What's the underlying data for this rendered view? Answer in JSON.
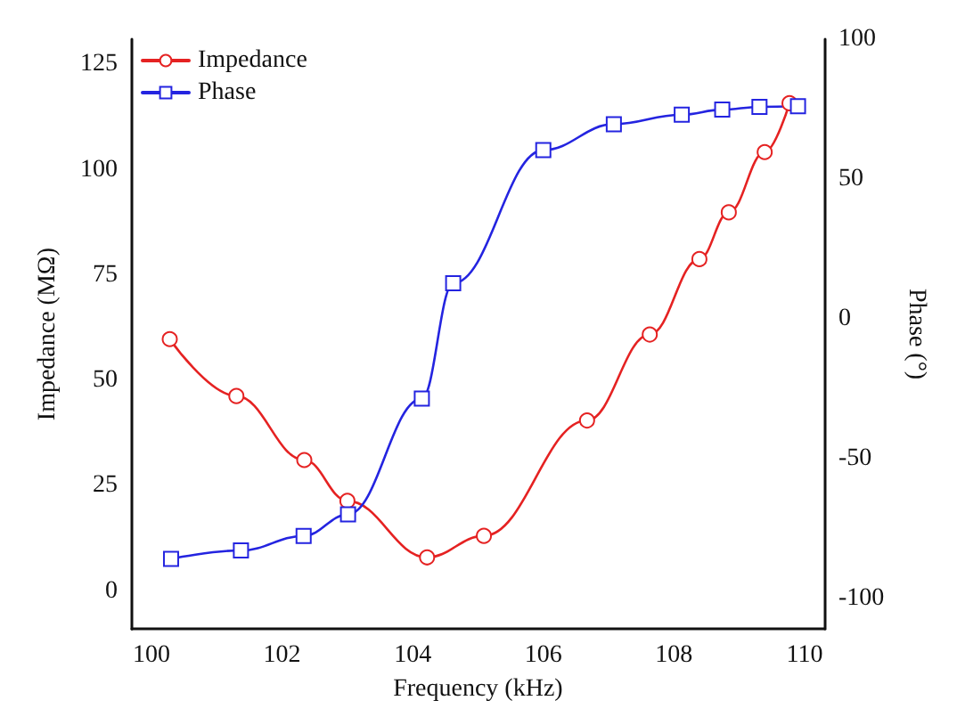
{
  "chart_data": {
    "type": "line",
    "xlabel": "Frequency (kHz)",
    "ylabel": "Impedance (MΩ)",
    "y2label": "Phase (°)",
    "xlim": [
      99.7,
      110.3
    ],
    "xticks": [
      100,
      102,
      104,
      106,
      108,
      110
    ],
    "ylim": [
      -9,
      131
    ],
    "yticks": [
      0,
      25,
      50,
      75,
      100,
      125
    ],
    "y2lim": [
      -111,
      100
    ],
    "y2ticks": [
      -100,
      -50,
      0,
      50,
      100
    ],
    "grid": false,
    "legend": "top left",
    "line_style": "solid",
    "series": [
      {
        "name": "Impedance",
        "color": "#e52222",
        "marker": "circle",
        "x": [
          100.28,
          101.3,
          102.34,
          103.0,
          104.22,
          105.09,
          106.67,
          107.63,
          108.39,
          108.84,
          109.39,
          109.77
        ],
        "values": [
          59.8,
          46.3,
          31.1,
          21.4,
          8.0,
          13.1,
          40.5,
          60.9,
          78.8,
          89.9,
          104.2,
          115.8
        ]
      },
      {
        "name": "Phase",
        "color": "#2424e0",
        "marker": "square",
        "axis": "y2",
        "x": [
          100.3,
          101.37,
          102.33,
          103.01,
          104.14,
          104.62,
          106.0,
          107.08,
          108.12,
          108.74,
          109.31,
          109.9
        ],
        "values": [
          -85.9,
          -82.9,
          -77.7,
          -70.0,
          -28.6,
          12.7,
          60.3,
          69.6,
          73.0,
          74.8,
          75.8,
          76.0
        ]
      }
    ]
  }
}
